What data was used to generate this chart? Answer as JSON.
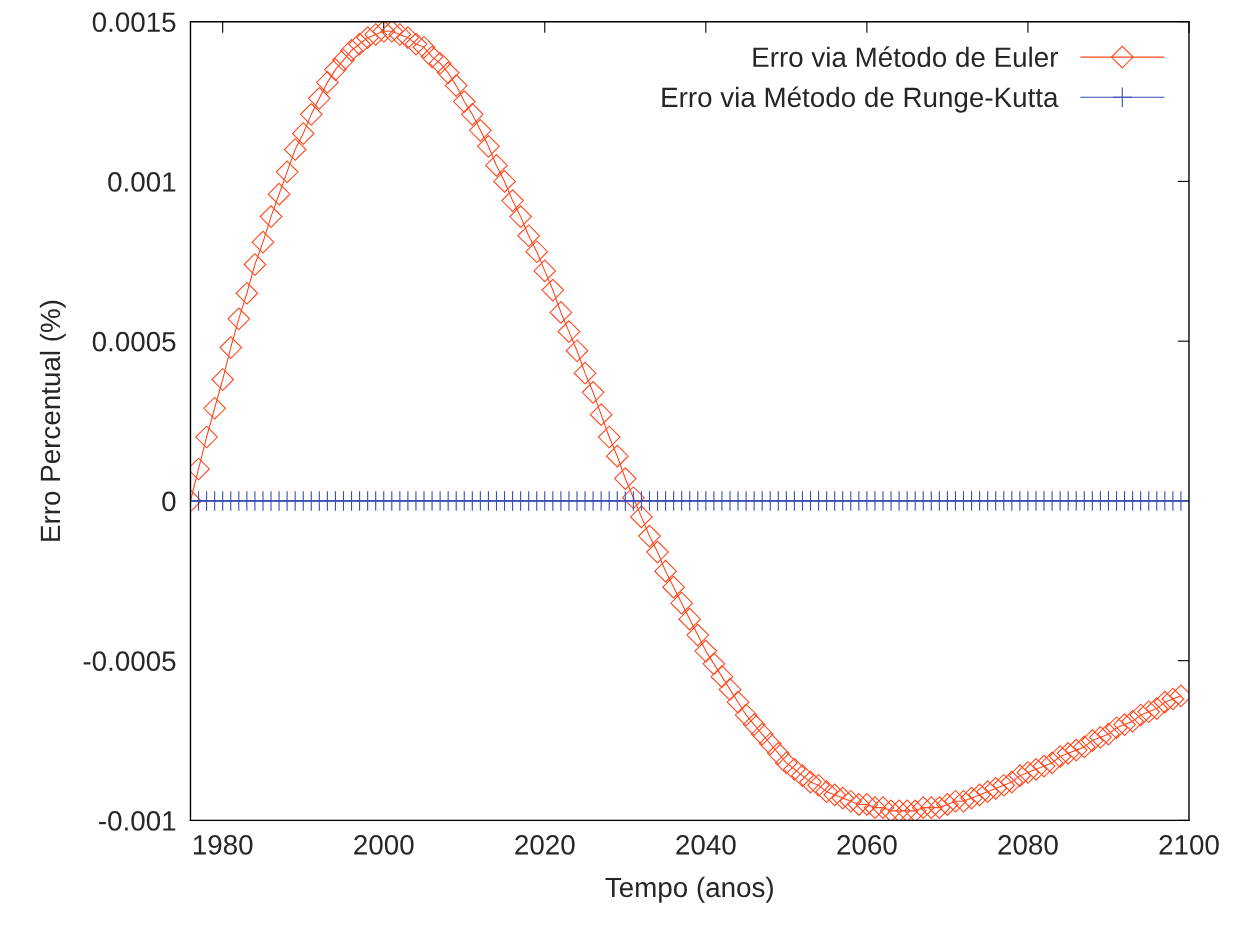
{
  "chart_data": {
    "type": "line",
    "xlabel": "Tempo (anos)",
    "ylabel": "Erro Percentual (%)",
    "x": [
      1976,
      1977,
      1978,
      1979,
      1980,
      1981,
      1982,
      1983,
      1984,
      1985,
      1986,
      1987,
      1988,
      1989,
      1990,
      1991,
      1992,
      1993,
      1994,
      1995,
      1996,
      1997,
      1998,
      1999,
      2000,
      2001,
      2002,
      2003,
      2004,
      2005,
      2006,
      2007,
      2008,
      2009,
      2010,
      2011,
      2012,
      2013,
      2014,
      2015,
      2016,
      2017,
      2018,
      2019,
      2020,
      2021,
      2022,
      2023,
      2024,
      2025,
      2026,
      2027,
      2028,
      2029,
      2030,
      2031,
      2032,
      2033,
      2034,
      2035,
      2036,
      2037,
      2038,
      2039,
      2040,
      2041,
      2042,
      2043,
      2044,
      2045,
      2046,
      2047,
      2048,
      2049,
      2050,
      2051,
      2052,
      2053,
      2054,
      2055,
      2056,
      2057,
      2058,
      2059,
      2060,
      2061,
      2062,
      2063,
      2064,
      2065,
      2066,
      2067,
      2068,
      2069,
      2070,
      2071,
      2072,
      2073,
      2074,
      2075,
      2076,
      2077,
      2078,
      2079,
      2080,
      2081,
      2082,
      2083,
      2084,
      2085,
      2086,
      2087,
      2088,
      2089,
      2090,
      2091,
      2092,
      2093,
      2094,
      2095,
      2096,
      2097,
      2098,
      2099
    ],
    "series": [
      {
        "name": "Erro via Método de Euler",
        "color": "#ff4a22",
        "marker": "diamond",
        "values": [
          0,
          0.0001,
          0.0002,
          0.00029,
          0.00038,
          0.00048,
          0.00057,
          0.00065,
          0.00074,
          0.00081,
          0.00089,
          0.00096,
          0.00103,
          0.0011,
          0.00115,
          0.00121,
          0.00126,
          0.00131,
          0.00135,
          0.00138,
          0.00141,
          0.00143,
          0.00145,
          0.00146,
          0.00147,
          0.00147,
          0.00146,
          0.00145,
          0.00143,
          0.00142,
          0.00139,
          0.00137,
          0.00134,
          0.0013,
          0.00125,
          0.00121,
          0.00116,
          0.00111,
          0.00105,
          0.001,
          0.00094,
          0.00089,
          0.00083,
          0.00078,
          0.00072,
          0.00066,
          0.00059,
          0.00053,
          0.00047,
          0.0004,
          0.00034,
          0.00027,
          0.0002,
          0.00014,
          7e-05,
          1e-05,
          -5e-05,
          -0.00011,
          -0.00016,
          -0.00022,
          -0.00027,
          -0.00032,
          -0.00037,
          -0.00042,
          -0.00047,
          -0.00051,
          -0.00055,
          -0.00059,
          -0.00063,
          -0.00067,
          -0.0007,
          -0.00073,
          -0.00076,
          -0.00079,
          -0.00082,
          -0.00084,
          -0.00086,
          -0.00088,
          -0.00089,
          -0.00091,
          -0.00092,
          -0.00093,
          -0.00094,
          -0.00095,
          -0.00095,
          -0.00096,
          -0.00096,
          -0.00097,
          -0.00097,
          -0.00097,
          -0.00097,
          -0.00096,
          -0.00096,
          -0.00096,
          -0.00095,
          -0.00094,
          -0.00094,
          -0.00093,
          -0.00092,
          -0.00091,
          -0.0009,
          -0.00089,
          -0.00088,
          -0.00086,
          -0.00085,
          -0.00084,
          -0.00083,
          -0.00082,
          -0.0008,
          -0.00079,
          -0.00078,
          -0.00077,
          -0.00075,
          -0.00074,
          -0.00073,
          -0.00071,
          -0.0007,
          -0.00069,
          -0.00067,
          -0.00066,
          -0.00065,
          -0.00063,
          -0.00062,
          -0.00061
        ]
      },
      {
        "name": "Erro via Método de Runge-Kutta",
        "color": "#3a4fb8",
        "marker": "cross",
        "values": [
          0,
          0,
          0,
          0,
          0,
          0,
          0,
          0,
          0,
          0,
          0,
          0,
          0,
          0,
          0,
          0,
          0,
          0,
          0,
          0,
          0,
          0,
          0,
          0,
          0,
          0,
          0,
          0,
          0,
          0,
          0,
          0,
          0,
          0,
          0,
          0,
          0,
          0,
          0,
          0,
          0,
          0,
          0,
          0,
          0,
          0,
          0,
          0,
          0,
          0,
          0,
          0,
          0,
          0,
          0,
          0,
          0,
          0,
          0,
          0,
          0,
          0,
          0,
          0,
          0,
          0,
          0,
          0,
          0,
          0,
          0,
          0,
          0,
          0,
          0,
          0,
          0,
          0,
          0,
          0,
          0,
          0,
          0,
          0,
          0,
          0,
          0,
          0,
          0,
          0,
          0,
          0,
          0,
          0,
          0,
          0,
          0,
          0,
          0,
          0,
          0,
          0,
          0,
          0,
          0,
          0,
          0,
          0,
          0,
          0,
          0,
          0,
          0,
          0,
          0,
          0,
          0,
          0,
          0,
          0,
          0,
          0,
          0,
          0
        ]
      }
    ],
    "xlim": [
      1976,
      2100
    ],
    "xticks": [
      1980,
      2000,
      2020,
      2040,
      2060,
      2080,
      2100
    ],
    "ylim": [
      -0.001,
      0.0015
    ],
    "yticks": [
      -0.001,
      -0.0005,
      0,
      0.0005,
      0.001,
      0.0015
    ],
    "grid": false,
    "legend": "top right",
    "line_style": "solid"
  }
}
